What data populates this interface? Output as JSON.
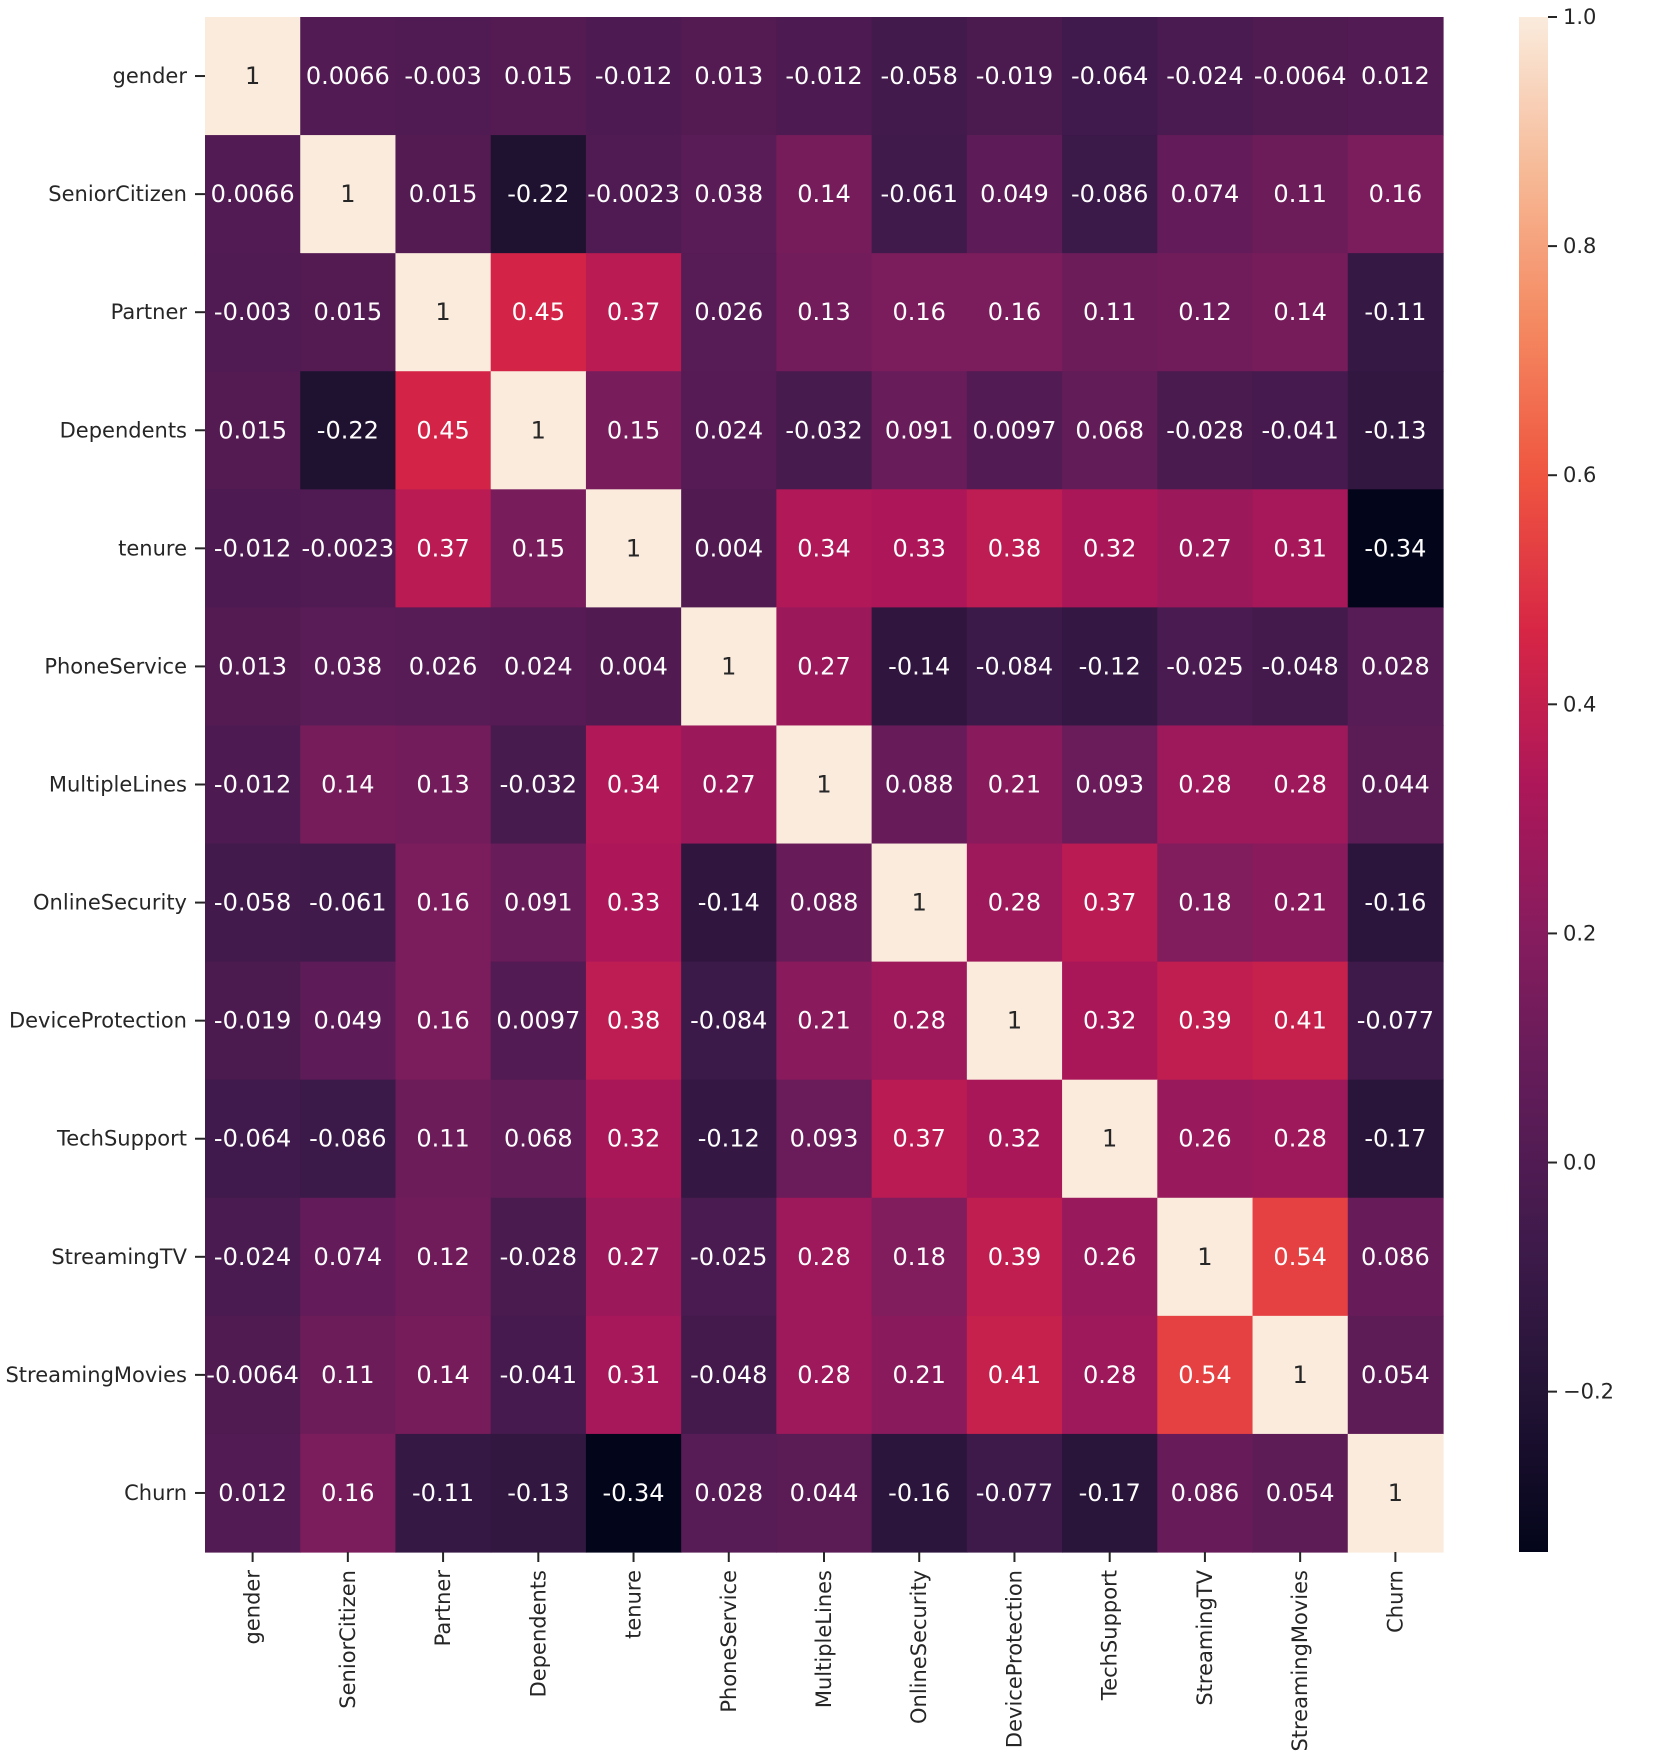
{
  "chart_data": {
    "type": "heatmap",
    "title": "",
    "xlabel": "",
    "ylabel": "",
    "labels": [
      "gender",
      "SeniorCitizen",
      "Partner",
      "Dependents",
      "tenure",
      "PhoneService",
      "MultipleLines",
      "OnlineSecurity",
      "DeviceProtection",
      "TechSupport",
      "StreamingTV",
      "StreamingMovies",
      "Churn"
    ],
    "values": [
      [
        1,
        0.0066,
        -0.003,
        0.015,
        -0.012,
        0.013,
        -0.012,
        -0.058,
        -0.019,
        -0.064,
        -0.024,
        -0.0064,
        0.012
      ],
      [
        0.0066,
        1,
        0.015,
        -0.22,
        -0.0023,
        0.038,
        0.14,
        -0.061,
        0.049,
        -0.086,
        0.074,
        0.11,
        0.16
      ],
      [
        -0.003,
        0.015,
        1,
        0.45,
        0.37,
        0.026,
        0.13,
        0.16,
        0.16,
        0.11,
        0.12,
        0.14,
        -0.11
      ],
      [
        0.015,
        -0.22,
        0.45,
        1,
        0.15,
        0.024,
        -0.032,
        0.091,
        0.0097,
        0.068,
        -0.028,
        -0.041,
        -0.13
      ],
      [
        -0.012,
        -0.0023,
        0.37,
        0.15,
        1,
        0.004,
        0.34,
        0.33,
        0.38,
        0.32,
        0.27,
        0.31,
        -0.34
      ],
      [
        0.013,
        0.038,
        0.026,
        0.024,
        0.004,
        1,
        0.27,
        -0.14,
        -0.084,
        -0.12,
        -0.025,
        -0.048,
        0.028
      ],
      [
        -0.012,
        0.14,
        0.13,
        -0.032,
        0.34,
        0.27,
        1,
        0.088,
        0.21,
        0.093,
        0.28,
        0.28,
        0.044
      ],
      [
        -0.058,
        -0.061,
        0.16,
        0.091,
        0.33,
        -0.14,
        0.088,
        1,
        0.28,
        0.37,
        0.18,
        0.21,
        -0.16
      ],
      [
        -0.019,
        0.049,
        0.16,
        0.0097,
        0.38,
        -0.084,
        0.21,
        0.28,
        1,
        0.32,
        0.39,
        0.41,
        -0.077
      ],
      [
        -0.064,
        -0.086,
        0.11,
        0.068,
        0.32,
        -0.12,
        0.093,
        0.37,
        0.32,
        1,
        0.26,
        0.28,
        -0.17
      ],
      [
        -0.024,
        0.074,
        0.12,
        -0.028,
        0.27,
        -0.025,
        0.28,
        0.18,
        0.39,
        0.26,
        1,
        0.54,
        0.086
      ],
      [
        -0.0064,
        0.11,
        0.14,
        -0.041,
        0.31,
        -0.048,
        0.28,
        0.21,
        0.41,
        0.28,
        0.54,
        1,
        0.054
      ],
      [
        0.012,
        0.16,
        -0.11,
        -0.13,
        -0.34,
        0.028,
        0.044,
        -0.16,
        -0.077,
        -0.17,
        0.086,
        0.054,
        1
      ]
    ],
    "colorbar": {
      "min": -0.34,
      "max": 1.0,
      "ticks": [
        -0.2,
        0.0,
        0.2,
        0.4,
        0.6,
        0.8,
        1.0
      ],
      "tick_labels": [
        "−0.2",
        "0.0",
        "0.2",
        "0.4",
        "0.6",
        "0.8",
        "1.0"
      ]
    },
    "colormap": "rocket",
    "grid": false
  }
}
